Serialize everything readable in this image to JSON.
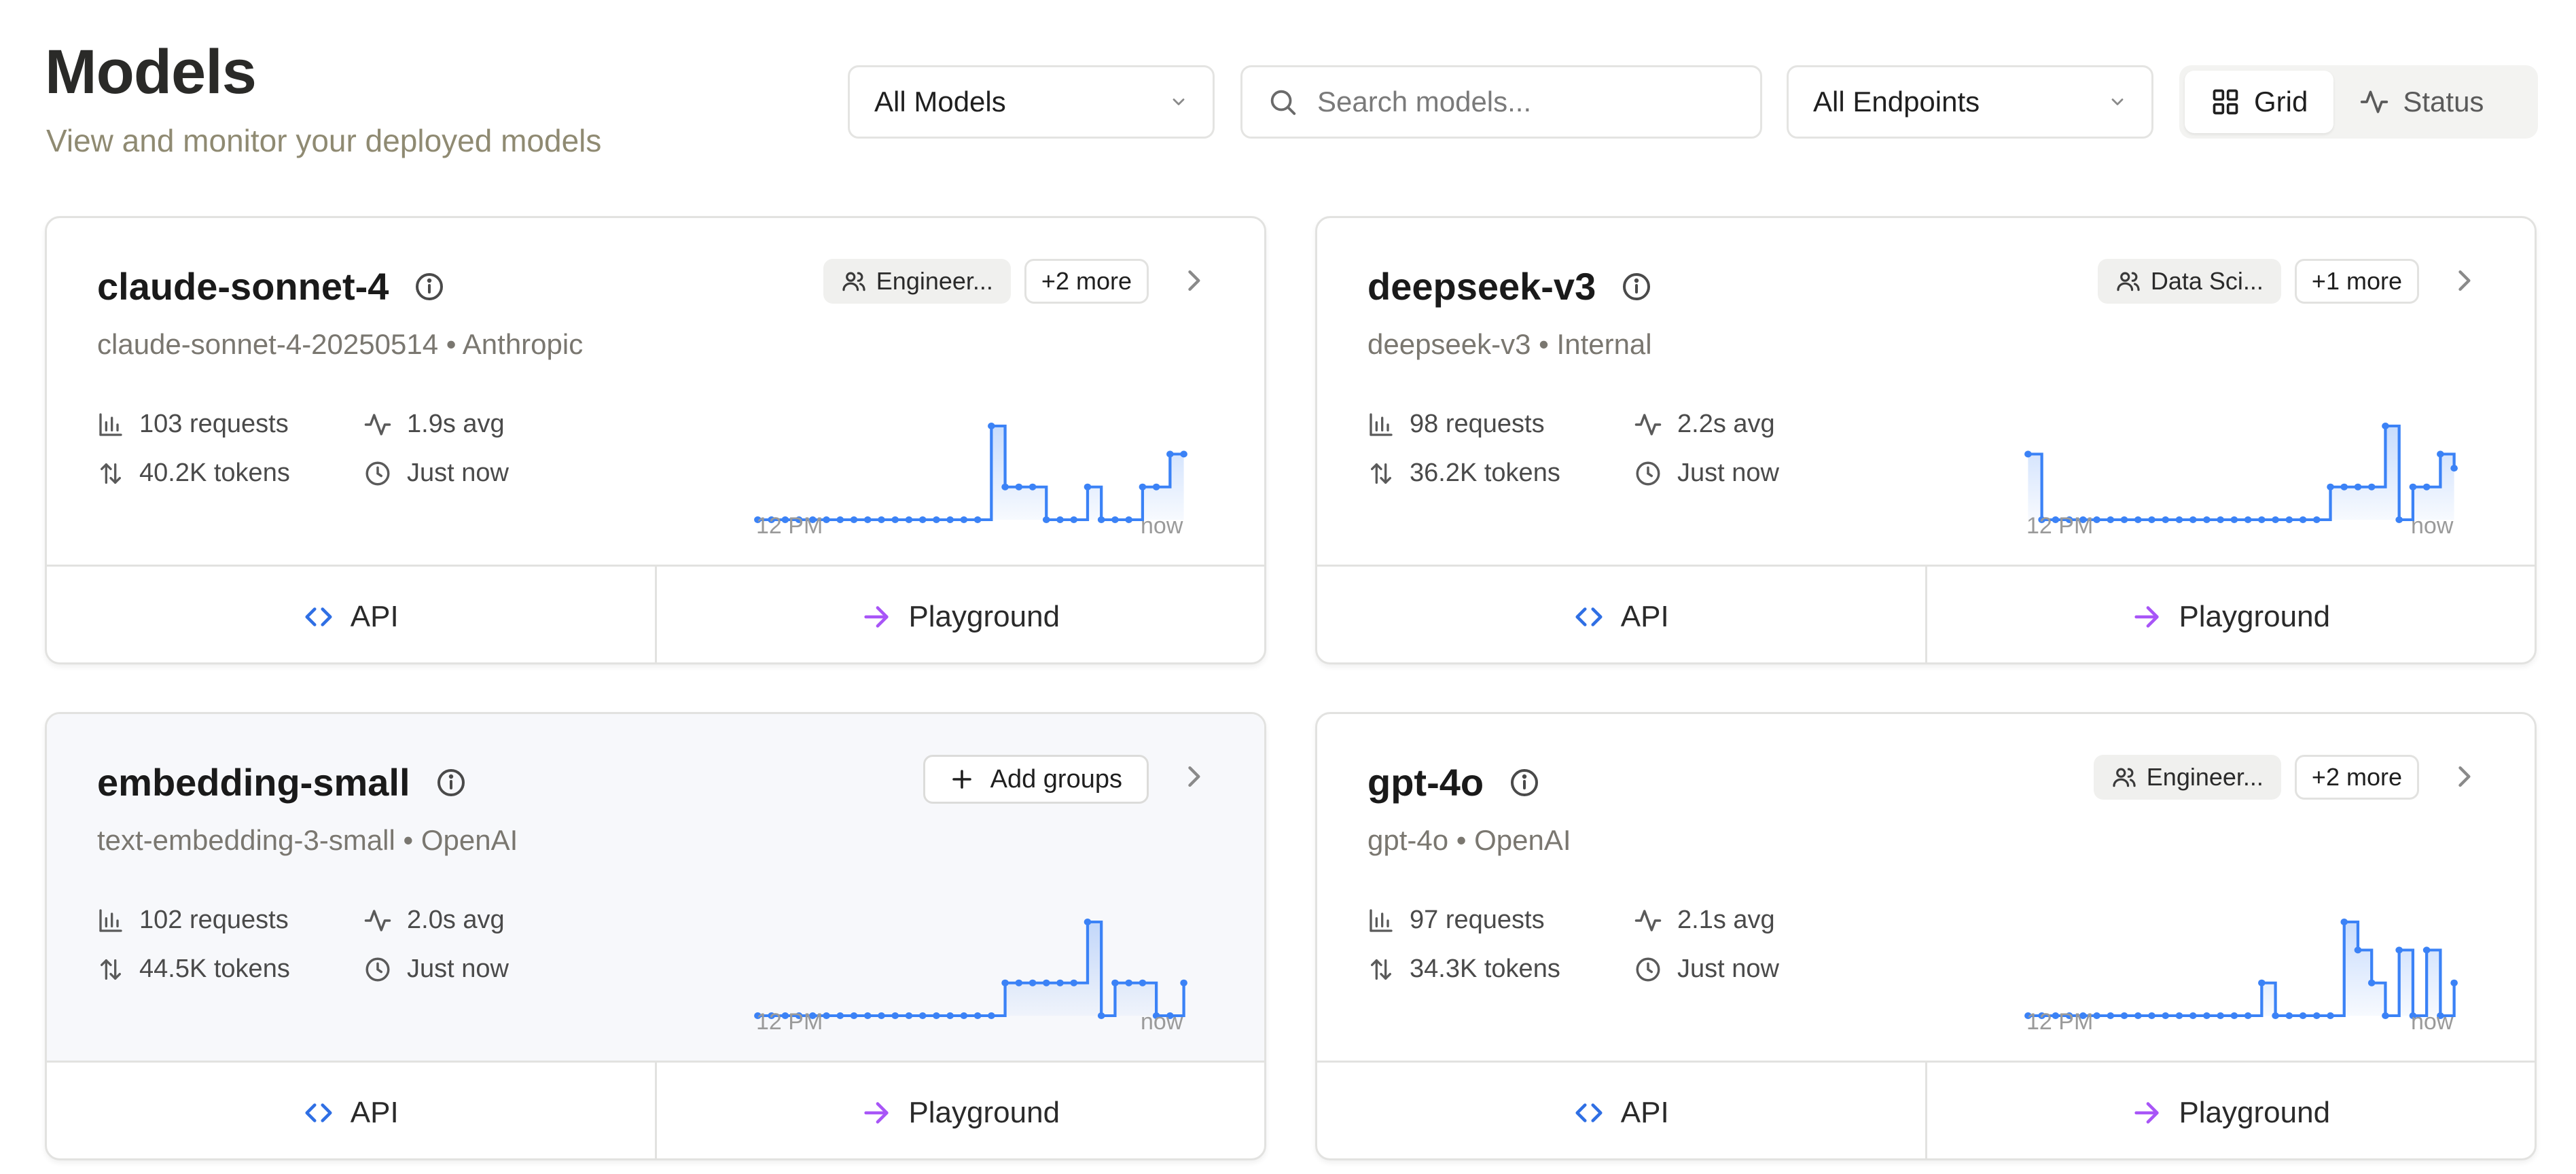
{
  "header": {
    "title": "Models",
    "subtitle": "View and monitor your deployed models"
  },
  "filters": {
    "model_filter": "All Models",
    "search_placeholder": "Search models...",
    "endpoint_filter": "All Endpoints"
  },
  "view_toggle": {
    "grid_label": "Grid",
    "status_label": "Status",
    "active": "grid"
  },
  "colors": {
    "accent_blue": "#3b82f6",
    "playground_purple": "#a855f7",
    "subtitle": "#8f8a72"
  },
  "cards": [
    {
      "name": "claude-sonnet-4",
      "subtitle": "claude-sonnet-4-20250514 • Anthropic",
      "group_badge": "Engineer...",
      "more_badge": "+2 more",
      "requests": "103 requests",
      "tokens": "40.2K tokens",
      "latency": "1.9s avg",
      "last_seen": "Just now",
      "sparkline_values": [
        0,
        0,
        0,
        0,
        0,
        0,
        0,
        0,
        0,
        0,
        0,
        0,
        0,
        0,
        0,
        0,
        0,
        1.0,
        0.35,
        0.35,
        0.35,
        0,
        0,
        0,
        0.35,
        0,
        0,
        0,
        0.35,
        0.35,
        0.7,
        0.7
      ],
      "chart_start": "12 PM",
      "chart_end": "now",
      "api_label": "API",
      "playground_label": "Playground"
    },
    {
      "name": "deepseek-v3",
      "subtitle": "deepseek-v3 • Internal",
      "group_badge": "Data Sci...",
      "more_badge": "+1 more",
      "requests": "98 requests",
      "tokens": "36.2K tokens",
      "latency": "2.2s avg",
      "last_seen": "Just now",
      "sparkline_values": [
        0.7,
        0,
        0,
        0,
        0,
        0,
        0,
        0,
        0,
        0,
        0,
        0,
        0,
        0,
        0,
        0,
        0,
        0,
        0,
        0,
        0,
        0,
        0.35,
        0.35,
        0.35,
        0.35,
        1.0,
        0,
        0.35,
        0.35,
        0.7,
        0.55
      ],
      "chart_start": "12 PM",
      "chart_end": "now",
      "api_label": "API",
      "playground_label": "Playground"
    },
    {
      "name": "embedding-small",
      "subtitle": "text-embedding-3-small • OpenAI",
      "add_groups_label": "Add groups",
      "requests": "102 requests",
      "tokens": "44.5K tokens",
      "latency": "2.0s avg",
      "last_seen": "Just now",
      "sparkline_values": [
        0,
        0,
        0,
        0,
        0,
        0,
        0,
        0,
        0,
        0,
        0,
        0,
        0,
        0,
        0,
        0,
        0,
        0,
        0.35,
        0.35,
        0.35,
        0.35,
        0.35,
        0.35,
        1.0,
        0,
        0.35,
        0.35,
        0.35,
        0,
        0,
        0.35
      ],
      "chart_start": "12 PM",
      "chart_end": "now",
      "api_label": "API",
      "playground_label": "Playground"
    },
    {
      "name": "gpt-4o",
      "subtitle": "gpt-4o • OpenAI",
      "group_badge": "Engineer...",
      "more_badge": "+2 more",
      "requests": "97 requests",
      "tokens": "34.3K tokens",
      "latency": "2.1s avg",
      "last_seen": "Just now",
      "sparkline_values": [
        0,
        0,
        0,
        0,
        0,
        0,
        0,
        0,
        0,
        0,
        0,
        0,
        0,
        0,
        0,
        0,
        0,
        0.35,
        0,
        0,
        0,
        0,
        0,
        1.0,
        0.7,
        0.35,
        0,
        0.7,
        0,
        0.7,
        0,
        0.35
      ],
      "chart_start": "12 PM",
      "chart_end": "now",
      "api_label": "API",
      "playground_label": "Playground"
    }
  ]
}
